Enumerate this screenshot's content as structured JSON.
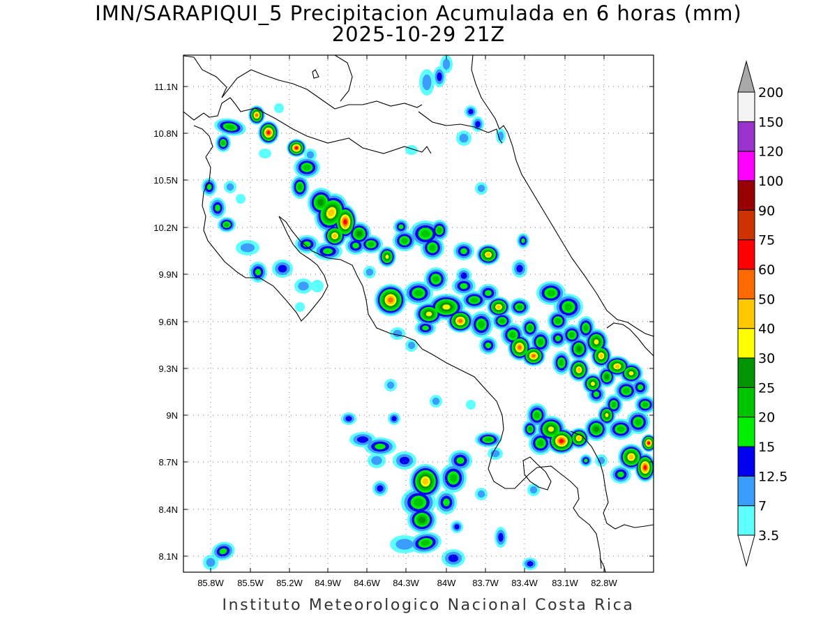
{
  "title": {
    "line1": "IMN/SARAPIQUI_5 Precipitacion Acumulada en 6 horas (mm)",
    "line2": "2025-10-29 21Z"
  },
  "footer": "Instituto Meteorologico Nacional Costa Rica",
  "map": {
    "lon_range": [
      -86.05,
      -82.4
    ],
    "lat_range": [
      8.0,
      11.3
    ],
    "grid": "dotted"
  },
  "axes": {
    "lat_labels": [
      "11.1N",
      "10.8N",
      "10.5N",
      "10.2N",
      "9.9N",
      "9.6N",
      "9.3N",
      "9N",
      "8.7N",
      "8.4N",
      "8.1N"
    ],
    "lon_labels": [
      "85.8W",
      "85.5W",
      "85.2W",
      "84.9W",
      "84.6W",
      "84.3W",
      "84W",
      "83.7W",
      "83.4W",
      "83.1W",
      "82.8W"
    ]
  },
  "colorbar": {
    "labels": [
      "3.5",
      "7",
      "12.5",
      "15",
      "20",
      "25",
      "30",
      "40",
      "50",
      "60",
      "75",
      "90",
      "100",
      "120",
      "150",
      "200"
    ],
    "colors": [
      "#5dffff",
      "#3a9dff",
      "#0000f0",
      "#00ee00",
      "#00c400",
      "#009400",
      "#ffff00",
      "#ffc800",
      "#ff6a00",
      "#ff0000",
      "#cc3300",
      "#990000",
      "#ff00ff",
      "#9933cc",
      "#f4f4f4"
    ],
    "over_color": "#a8a8a8"
  },
  "precip_colors": {
    "c1": "#5dffff",
    "c2": "#3a9dff",
    "c3": "#0000f0",
    "c4": "#00ee00",
    "c5": "#00c400",
    "c6": "#009400",
    "c7": "#ffff00",
    "c8": "#ffc800",
    "c9": "#ff6a00",
    "c10": "#ff0000"
  }
}
